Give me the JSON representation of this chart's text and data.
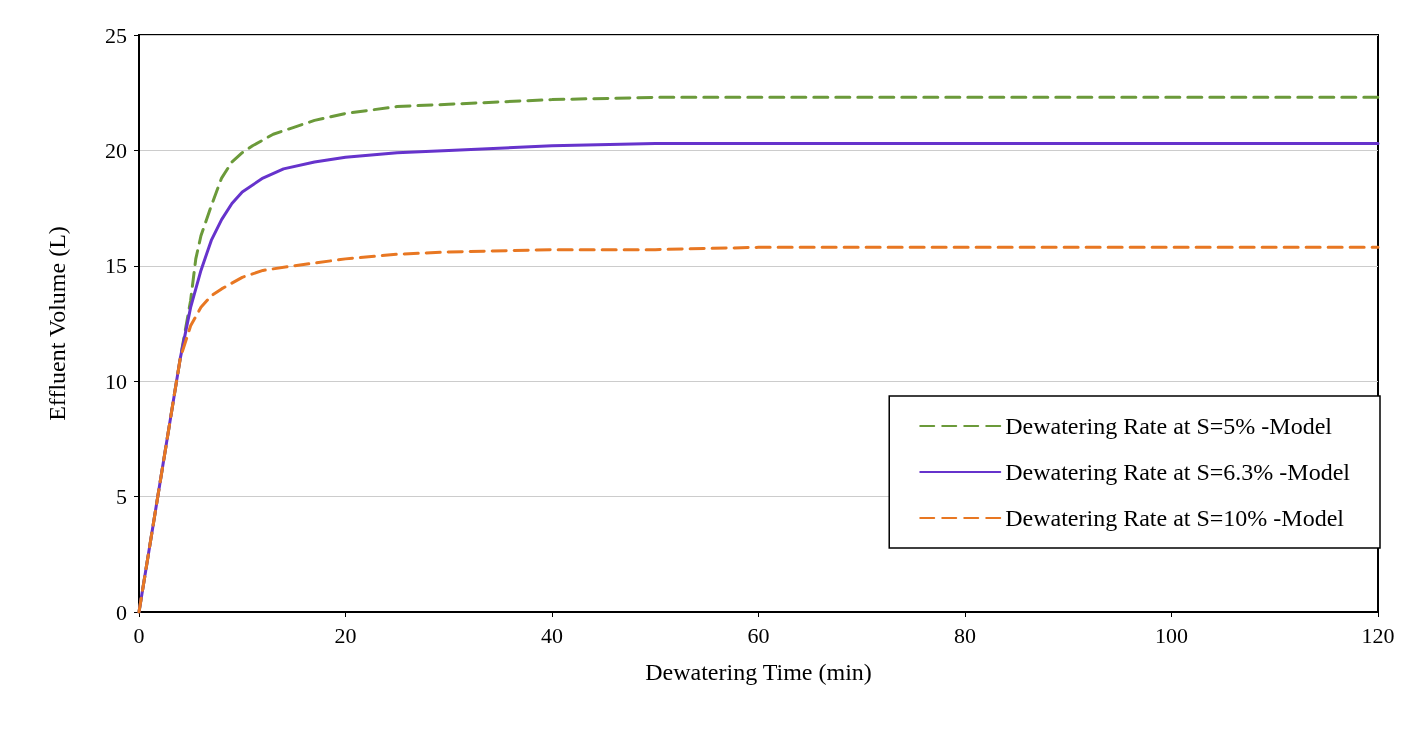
{
  "chart_data": {
    "type": "line",
    "xlabel": "Dewatering Time (min)",
    "ylabel": "Effluent Volume (L)",
    "xlim": [
      0,
      120
    ],
    "xticks": [
      0,
      20,
      40,
      60,
      80,
      100,
      120
    ],
    "ylim": [
      0,
      25
    ],
    "yticks": [
      0,
      5,
      10,
      15,
      20,
      25
    ],
    "grid": "y",
    "legend": "bottom right",
    "marker": "none",
    "series": [
      {
        "name": "Dewatering Rate at S=5% -Model",
        "color": "#6b9a3a",
        "line_style": "dashed",
        "x": [
          0,
          2,
          4,
          5,
          5.5,
          6,
          7,
          8,
          9,
          10,
          11,
          13,
          15,
          17,
          20,
          25,
          30,
          40,
          50,
          60,
          80,
          100,
          120
        ],
        "values": [
          0,
          5.5,
          11,
          13.5,
          15.3,
          16.3,
          17.6,
          18.8,
          19.5,
          19.9,
          20.2,
          20.7,
          21.0,
          21.3,
          21.6,
          21.9,
          22.0,
          22.2,
          22.3,
          22.3,
          22.3,
          22.3,
          22.3
        ]
      },
      {
        "name": "Dewatering Rate at S=6.3% -Model",
        "color": "#6633cc",
        "line_style": "solid",
        "x": [
          0,
          2,
          4,
          5,
          6,
          7,
          8,
          9,
          10,
          12,
          14,
          17,
          20,
          25,
          30,
          40,
          50,
          60,
          80,
          100,
          120
        ],
        "values": [
          0,
          5.5,
          11,
          13.2,
          14.8,
          16.1,
          17.0,
          17.7,
          18.2,
          18.8,
          19.2,
          19.5,
          19.7,
          19.9,
          20.0,
          20.2,
          20.3,
          20.3,
          20.3,
          20.3,
          20.3
        ]
      },
      {
        "name": "Dewatering Rate at S=10% -Model",
        "color": "#e87722",
        "line_style": "dashed",
        "x": [
          0,
          2,
          4,
          5,
          6,
          7,
          8,
          10,
          12,
          15,
          20,
          25,
          30,
          40,
          50,
          60,
          80,
          100,
          120
        ],
        "values": [
          0,
          5.5,
          11,
          12.4,
          13.2,
          13.7,
          14.0,
          14.5,
          14.8,
          15.0,
          15.3,
          15.5,
          15.6,
          15.7,
          15.7,
          15.8,
          15.8,
          15.8,
          15.8
        ]
      }
    ]
  }
}
